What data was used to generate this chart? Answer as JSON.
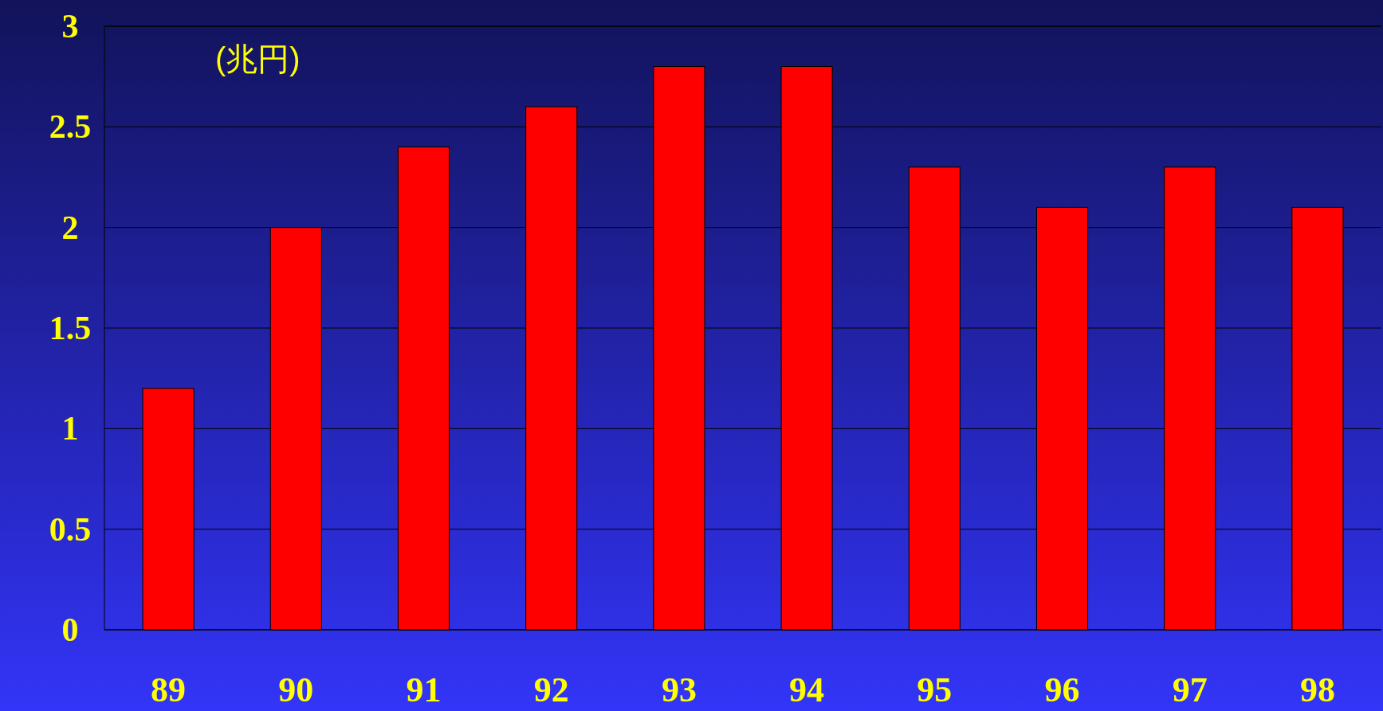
{
  "chart_data": {
    "type": "bar",
    "ylabel": "(兆円)",
    "categories": [
      "89",
      "90",
      "91",
      "92",
      "93",
      "94",
      "95",
      "96",
      "97",
      "98"
    ],
    "values": [
      1.2,
      2.0,
      2.4,
      2.6,
      2.8,
      2.8,
      2.3,
      2.1,
      2.3,
      2.1
    ],
    "color": "#ff0000",
    "ylim": [
      0,
      3
    ],
    "yticks": [
      0,
      0.5,
      1,
      1.5,
      2,
      2.5,
      3
    ],
    "grid": "y"
  }
}
